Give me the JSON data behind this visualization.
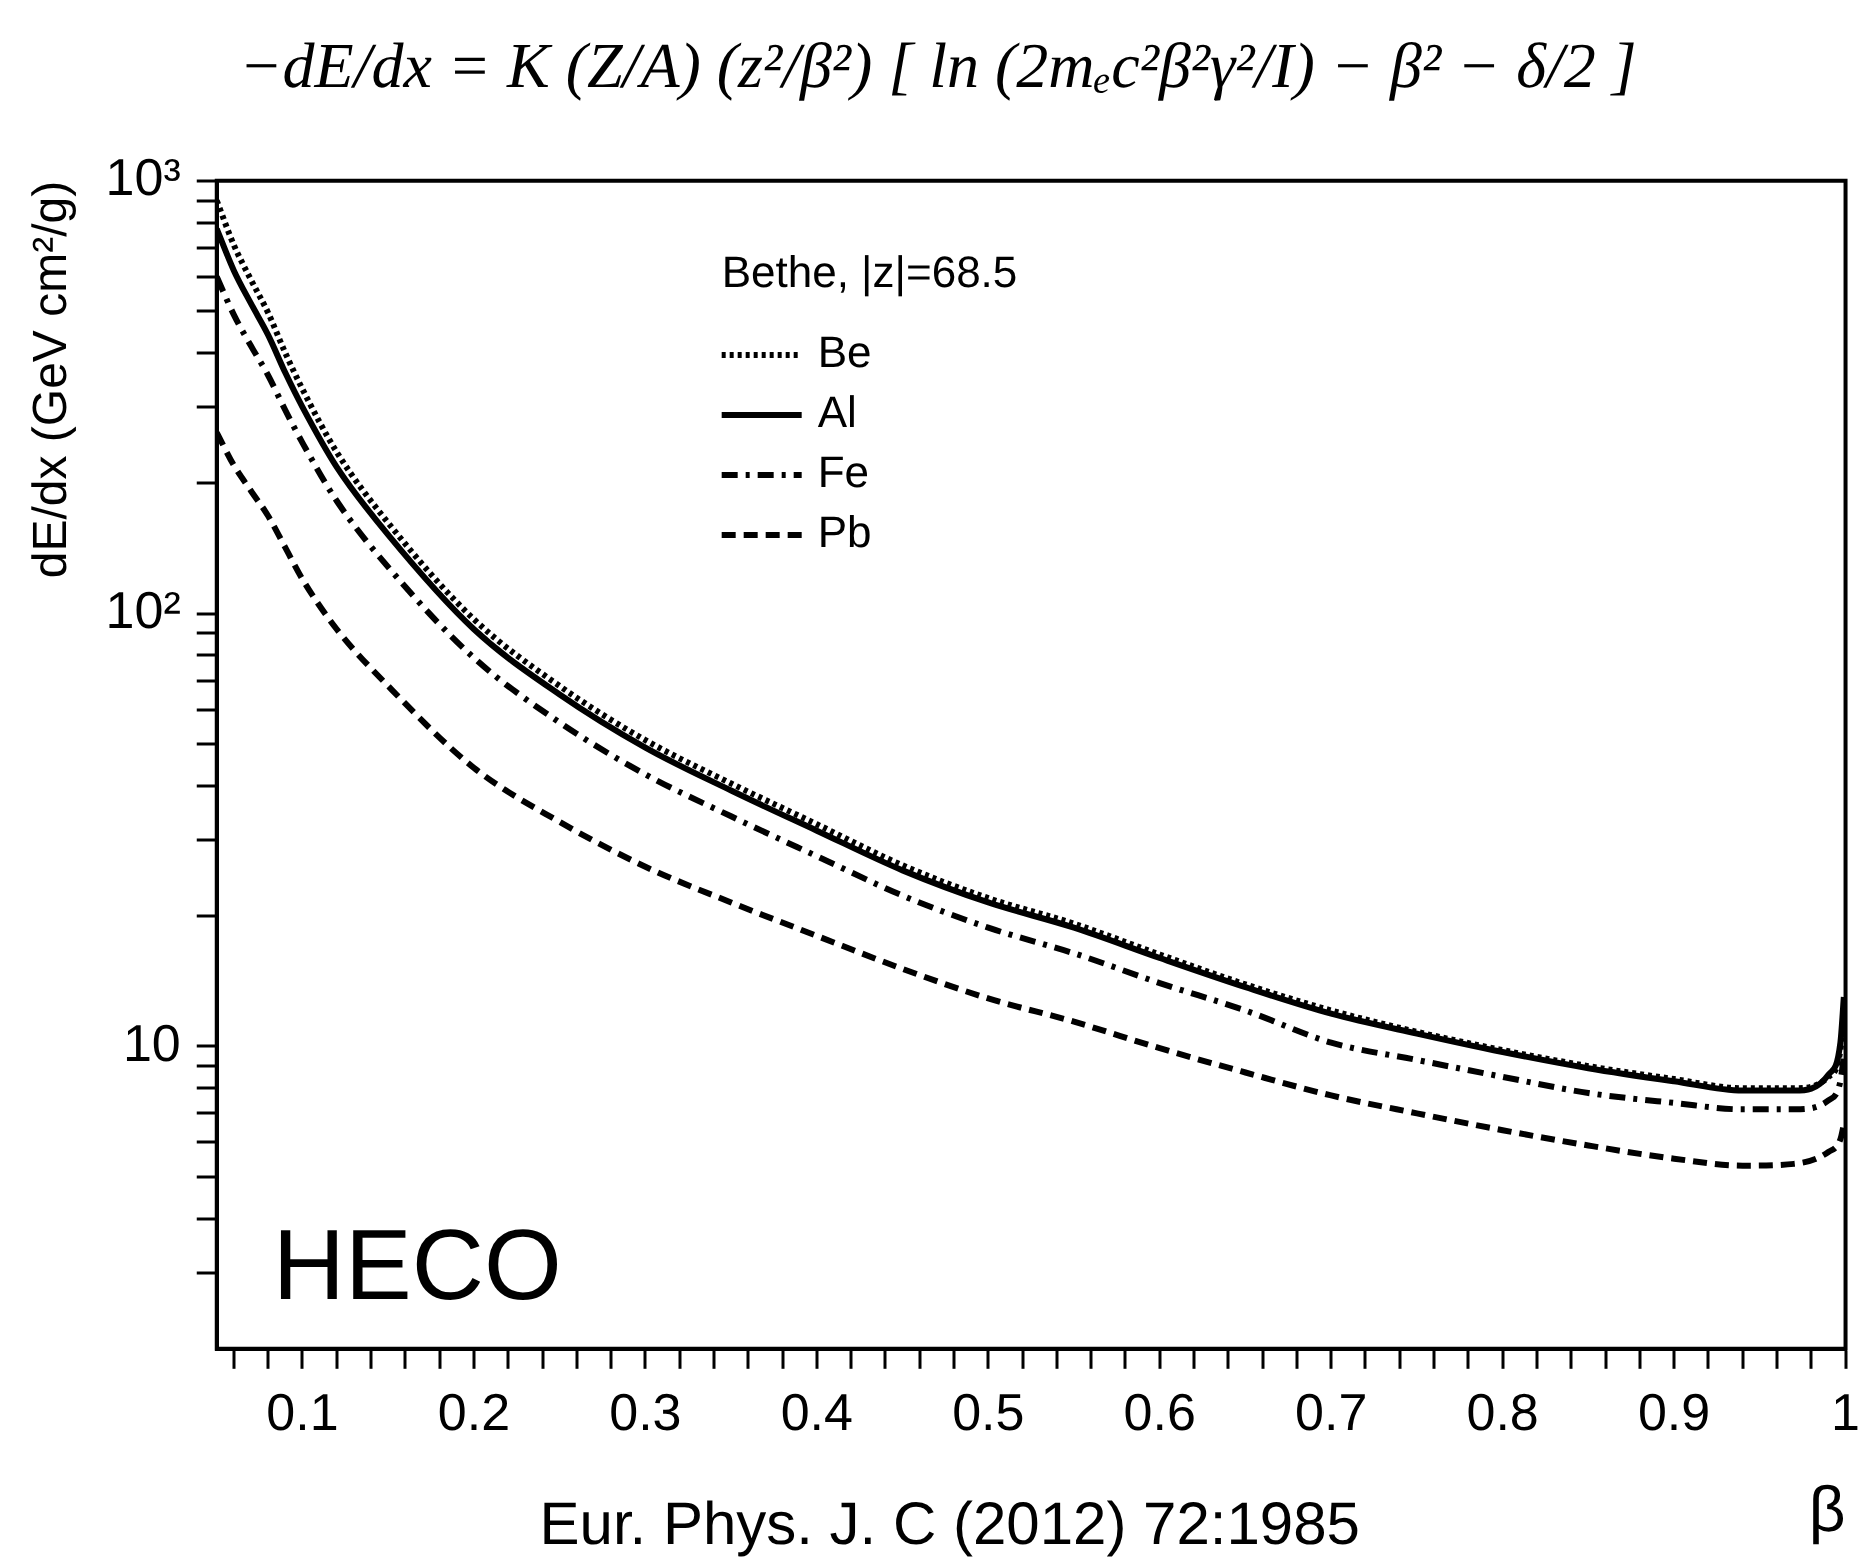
{
  "chart_data": {
    "type": "line",
    "title": "−dE/dx = K (Z/A) (z²/β²) [ ln (2mₑc²β²γ²/I) − β² − δ/2 ]",
    "xlabel": "β",
    "ylabel": "dE/dx (GeV cm²/g)",
    "legend_title": "Bethe, |z|=68.5",
    "legend": "top",
    "log": "y",
    "grid": false,
    "marker": "none",
    "annotations": [
      "HECO",
      "Eur. Phys. J. C (2012) 72:1985"
    ],
    "x": [
      0.05,
      0.06,
      0.07,
      0.08,
      0.09,
      0.1,
      0.12,
      0.15,
      0.2,
      0.25,
      0.3,
      0.35,
      0.4,
      0.45,
      0.5,
      0.55,
      0.6,
      0.65,
      0.7,
      0.75,
      0.8,
      0.85,
      0.9,
      0.94,
      0.97,
      0.99,
      0.997,
      0.999
    ],
    "series": [
      {
        "name": "Be",
        "color": "#000000",
        "line_style": "dotted",
        "values": [
          900,
          710,
          590,
          495,
          400,
          330,
          236,
          162,
          97,
          68,
          51,
          40.5,
          32.6,
          26.2,
          22,
          19.2,
          16.3,
          13.9,
          12.1,
          10.8,
          9.8,
          9,
          8.4,
          8,
          8,
          8.5,
          9.8,
          12
        ]
      },
      {
        "name": "Al",
        "color": "#000000",
        "line_style": "solid",
        "values": [
          774,
          620,
          520,
          440,
          360,
          300,
          218,
          152,
          92,
          65,
          49,
          39,
          31.5,
          25.5,
          21.5,
          18.8,
          16,
          13.7,
          11.9,
          10.7,
          9.7,
          8.9,
          8.3,
          7.9,
          7.9,
          8.6,
          10.2,
          13
        ]
      },
      {
        "name": "Fe",
        "color": "#000000",
        "line_style": "dashdot",
        "values": [
          600,
          490,
          415,
          355,
          295,
          248,
          182,
          128,
          79,
          56,
          42.5,
          34,
          27.5,
          22.3,
          18.8,
          16.4,
          14,
          12.1,
          10.2,
          9.3,
          8.5,
          7.8,
          7.4,
          7.15,
          7.15,
          7.5,
          8.3,
          9.5
        ]
      },
      {
        "name": "Pb",
        "color": "#000000",
        "line_style": "dashed",
        "values": [
          262,
          220,
          192,
          168,
          142,
          120,
          92,
          68,
          44,
          33,
          26,
          21.5,
          18,
          15.1,
          12.9,
          11.4,
          9.9,
          8.7,
          7.7,
          7,
          6.4,
          5.9,
          5.5,
          5.3,
          5.35,
          5.7,
          6.1,
          6.6
        ]
      }
    ],
    "xlim": [
      0.05,
      1
    ],
    "ylim": [
      2,
      1000
    ],
    "xticks": [
      {
        "value": 0.06,
        "label": null
      },
      {
        "value": 0.08,
        "label": null
      },
      0.1,
      {
        "value": 0.12,
        "label": null
      },
      {
        "value": 0.14,
        "label": null
      },
      {
        "value": 0.16,
        "label": null
      },
      {
        "value": 0.18,
        "label": null
      },
      0.2,
      {
        "value": 0.22,
        "label": null
      },
      {
        "value": 0.24,
        "label": null
      },
      {
        "value": 0.26,
        "label": null
      },
      {
        "value": 0.28,
        "label": null
      },
      0.3,
      {
        "value": 0.32,
        "label": null
      },
      {
        "value": 0.34,
        "label": null
      },
      {
        "value": 0.36,
        "label": null
      },
      {
        "value": 0.38,
        "label": null
      },
      0.4,
      {
        "value": 0.42,
        "label": null
      },
      {
        "value": 0.44,
        "label": null
      },
      {
        "value": 0.46,
        "label": null
      },
      {
        "value": 0.48,
        "label": null
      },
      0.5,
      {
        "value": 0.52,
        "label": null
      },
      {
        "value": 0.54,
        "label": null
      },
      {
        "value": 0.56,
        "label": null
      },
      {
        "value": 0.58,
        "label": null
      },
      0.6,
      {
        "value": 0.62,
        "label": null
      },
      {
        "value": 0.64,
        "label": null
      },
      {
        "value": 0.66,
        "label": null
      },
      {
        "value": 0.68,
        "label": null
      },
      0.7,
      {
        "value": 0.72,
        "label": null
      },
      {
        "value": 0.74,
        "label": null
      },
      {
        "value": 0.76,
        "label": null
      },
      {
        "value": 0.78,
        "label": null
      },
      0.8,
      {
        "value": 0.82,
        "label": null
      },
      {
        "value": 0.84,
        "label": null
      },
      {
        "value": 0.86,
        "label": null
      },
      {
        "value": 0.88,
        "label": null
      },
      0.9,
      {
        "value": 0.92,
        "label": null
      },
      {
        "value": 0.94,
        "label": null
      },
      {
        "value": 0.96,
        "label": null
      },
      {
        "value": 0.98,
        "label": null
      },
      1
    ],
    "yticks": [
      {
        "value": 3,
        "label": null
      },
      {
        "value": 4,
        "label": null
      },
      {
        "value": 5,
        "label": null
      },
      {
        "value": 6,
        "label": null
      },
      {
        "value": 7,
        "label": null
      },
      {
        "value": 8,
        "label": null
      },
      {
        "value": 9,
        "label": null
      },
      10,
      {
        "value": 20,
        "label": null
      },
      {
        "value": 30,
        "label": null
      },
      {
        "value": 40,
        "label": null
      },
      {
        "value": 50,
        "label": null
      },
      {
        "value": 60,
        "label": null
      },
      {
        "value": 70,
        "label": null
      },
      {
        "value": 80,
        "label": null
      },
      {
        "value": 90,
        "label": null
      },
      {
        "value": 100,
        "label": "10²"
      },
      {
        "value": 200,
        "label": null
      },
      {
        "value": 300,
        "label": null
      },
      {
        "value": 400,
        "label": null
      },
      {
        "value": 500,
        "label": null
      },
      {
        "value": 600,
        "label": null
      },
      {
        "value": 700,
        "label": null
      },
      {
        "value": 800,
        "label": null
      },
      {
        "value": 900,
        "label": null
      },
      {
        "value": 1000,
        "label": "10³"
      }
    ]
  }
}
